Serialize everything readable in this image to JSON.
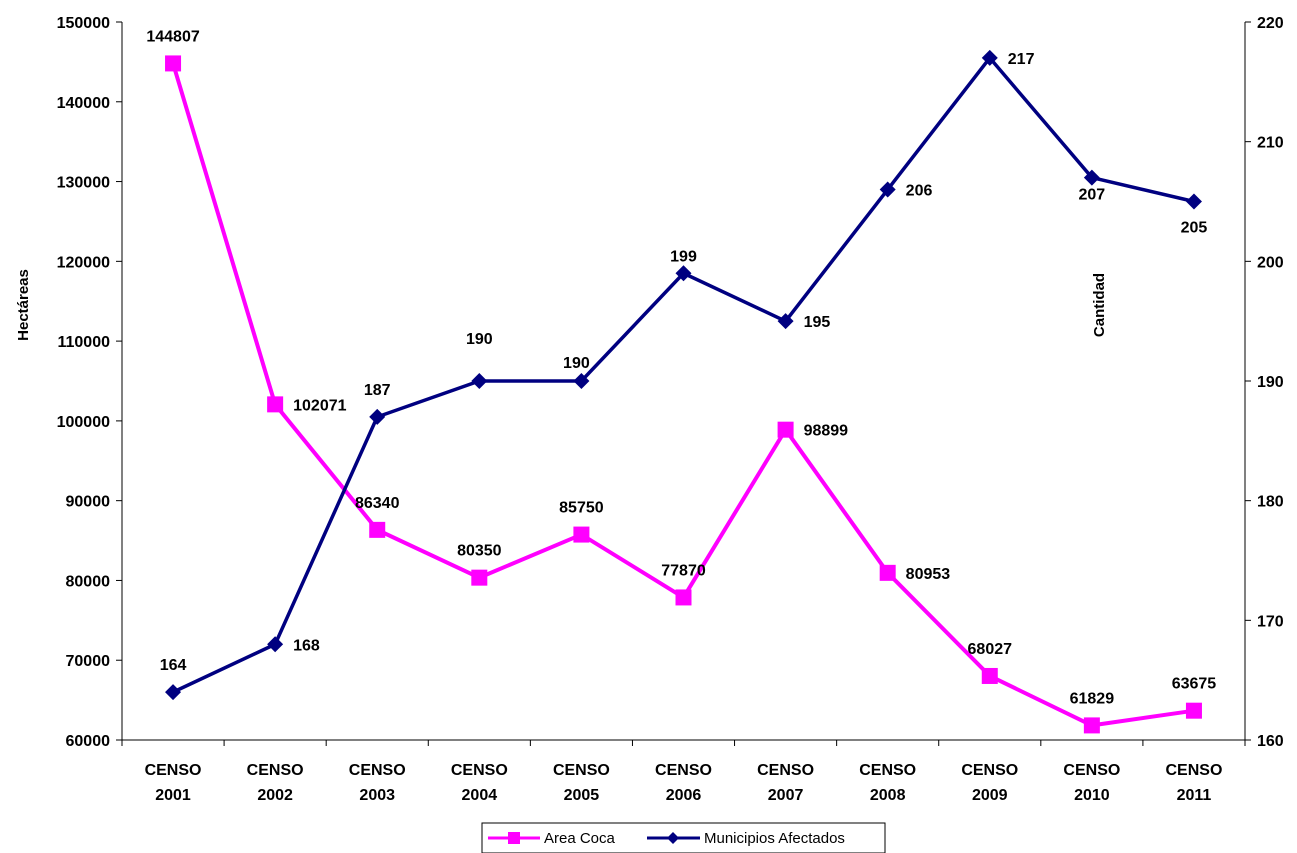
{
  "chart_data": {
    "type": "line",
    "categories": [
      [
        "CENSO",
        "2001"
      ],
      [
        "CENSO",
        "2002"
      ],
      [
        "CENSO",
        "2003"
      ],
      [
        "CENSO",
        "2004"
      ],
      [
        "CENSO",
        "2005"
      ],
      [
        "CENSO",
        "2006"
      ],
      [
        "CENSO",
        "2007"
      ],
      [
        "CENSO",
        "2008"
      ],
      [
        "CENSO",
        "2009"
      ],
      [
        "CENSO",
        "2010"
      ],
      [
        "CENSO",
        "2011"
      ]
    ],
    "ylabel": "Hectáreas",
    "y2label": "Cantidad",
    "ylim": [
      60000,
      150000
    ],
    "y2lim": [
      160,
      220
    ],
    "yticks": [
      "60000",
      "70000",
      "80000",
      "90000",
      "100000",
      "110000",
      "120000",
      "130000",
      "140000",
      "150000"
    ],
    "y2ticks": [
      "160",
      "170",
      "180",
      "190",
      "200",
      "210",
      "220"
    ],
    "grid": false,
    "legend_position": "bottom",
    "series": [
      {
        "name": "Area Coca",
        "axis": "left",
        "color": "#ff00ff",
        "marker": "square",
        "values": [
          144807,
          102071,
          86340,
          80350,
          85750,
          77870,
          98899,
          80953,
          68027,
          61829,
          63675
        ],
        "labels": [
          "144807",
          "102071",
          "86340",
          "80350",
          "85750",
          "77870",
          "98899",
          "80953",
          "68027",
          "61829",
          "63675"
        ]
      },
      {
        "name": "Municipios Afectados",
        "axis": "right",
        "color": "#000080",
        "marker": "diamond",
        "values": [
          164,
          168,
          187,
          190,
          190,
          199,
          195,
          206,
          217,
          207,
          205
        ],
        "labels": [
          "164",
          "168",
          "187",
          "190",
          "190",
          "199",
          "195",
          "206",
          "217",
          "207",
          "205"
        ]
      }
    ]
  }
}
